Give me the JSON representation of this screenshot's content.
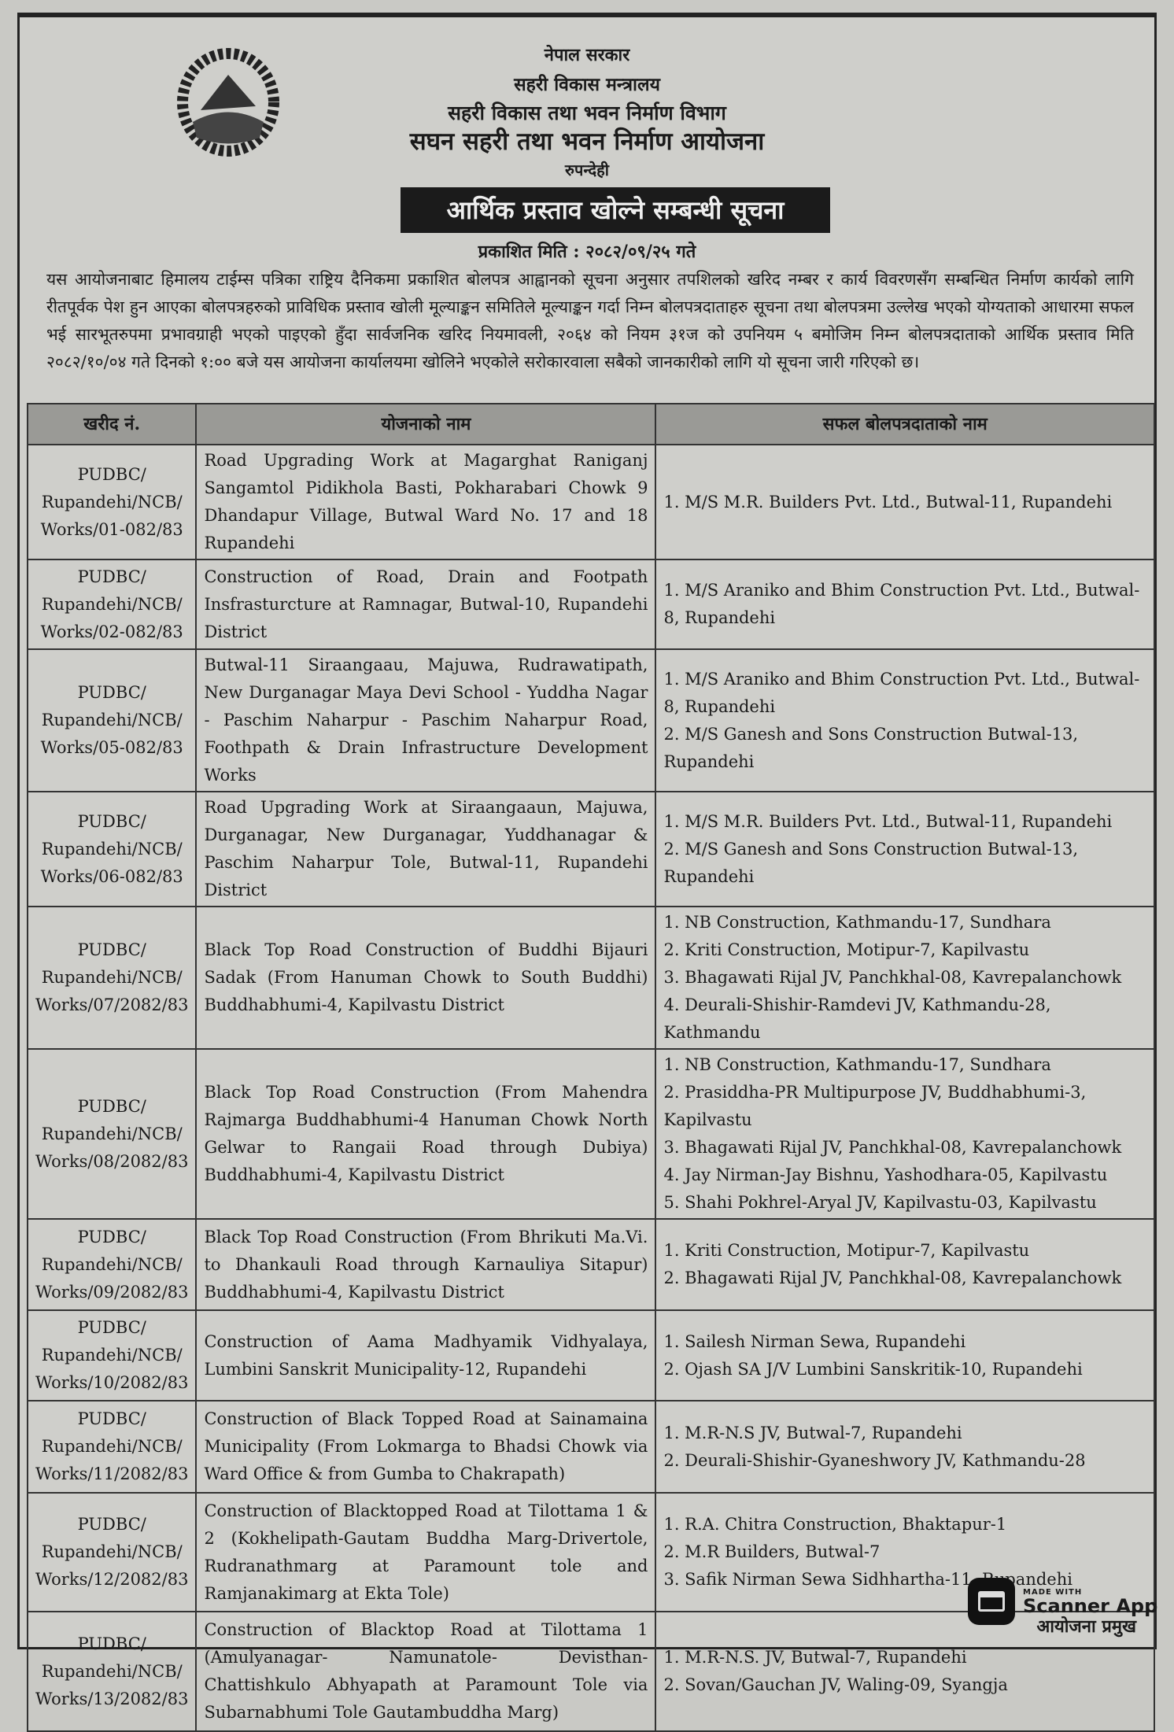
{
  "header": {
    "line1": "नेपाल सरकार",
    "line2": "सहरी विकास मन्त्रालय",
    "line3": "सहरी विकास तथा भवन निर्माण विभाग",
    "line4": "सघन सहरी तथा भवन निर्माण आयोजना",
    "line5": "रुपन्देही",
    "title": "आर्थिक प्रस्ताव खोल्ने सम्बन्धी सूचना",
    "published": "प्रकाशित मिति : २०८२/०९/२५ गते"
  },
  "body_text": "यस आयोजनाबाट हिमालय टाईम्स पत्रिका राष्ट्रिय दैनिकमा प्रकाशित बोलपत्र आह्वानको सूचना अनुसार तपशिलको खरिद नम्बर र कार्य विवरणसँग सम्बन्धित निर्माण कार्यको लागि रीतपूर्वक पेश हुन आएका बोलपत्रहरुको प्राविधिक प्रस्ताव खोली मूल्याङ्कन समितिले मूल्याङ्कन गर्दा निम्न बोलपत्रदाताहरु सूचना तथा बोलपत्रमा उल्लेख भएको योग्यताको आधारमा सफल भई सारभूतरुपमा प्रभावग्राही भएको पाइएको हुँदा सार्वजनिक खरिद नियमावली, २०६४ को नियम ३१ज को उपनियम ५ बमोजिम निम्न बोलपत्रदाताको आर्थिक प्रस्ताव मिति २०८२/१०/०४ गते दिनको १:०० बजे यस आयोजना कार्यालयमा खोलिने भएकोले सरोकारवाला सबैको जानकारीको लागि यो सूचना जारी गरिएको छ।",
  "table": {
    "headers": [
      "खरीद नं.",
      "योजनाको नाम",
      "सफल बोलपत्रदाताको नाम"
    ],
    "rows": [
      {
        "id": "PUDBC/ Rupandehi/NCB/ Works/01-082/83",
        "name": "Road Upgrading Work at Magarghat Raniganj Sangamtol Pidikhola Basti, Pokharabari Chowk 9 Dhandapur Village, Butwal Ward No. 17 and 18 Rupandehi",
        "bidders": [
          "1. M/S M.R. Builders Pvt. Ltd., Butwal-11, Rupandehi"
        ]
      },
      {
        "id": "PUDBC/ Rupandehi/NCB/ Works/02-082/83",
        "name": "Construction of Road, Drain and Footpath Insfrasturcture at Ramnagar, Butwal-10, Rupandehi District",
        "bidders": [
          "1. M/S Araniko and Bhim Construction Pvt. Ltd., Butwal-8, Rupandehi"
        ]
      },
      {
        "id": "PUDBC/ Rupandehi/NCB/ Works/05-082/83",
        "name": "Butwal-11 Siraangaau, Majuwa, Rudrawatipath, New Durganagar Maya Devi School - Yuddha Nagar - Paschim Naharpur - Paschim Naharpur Road, Foothpath & Drain Infrastructure Development Works",
        "bidders": [
          "1. M/S Araniko and Bhim Construction Pvt. Ltd., Butwal-8, Rupandehi",
          "2. M/S Ganesh and Sons Construction Butwal-13, Rupandehi"
        ]
      },
      {
        "id": "PUDBC/ Rupandehi/NCB/ Works/06-082/83",
        "name": "Road Upgrading Work at Siraangaaun, Majuwa, Durganagar, New Durganagar, Yuddhanagar & Paschim Naharpur Tole, Butwal-11, Rupandehi District",
        "bidders": [
          "1. M/S M.R. Builders Pvt. Ltd., Butwal-11, Rupandehi",
          "2. M/S Ganesh and Sons Construction Butwal-13, Rupandehi"
        ]
      },
      {
        "id": "PUDBC/ Rupandehi/NCB/ Works/07/2082/83",
        "name": "Black Top Road Construction of Buddhi Bijauri Sadak (From Hanuman Chowk to South Buddhi) Buddhabhumi-4, Kapilvastu District",
        "bidders": [
          "1. NB Construction, Kathmandu-17, Sundhara",
          "2. Kriti Construction, Motipur-7, Kapilvastu",
          "3. Bhagawati Rijal JV, Panchkhal-08, Kavrepalanchowk",
          "4. Deurali-Shishir-Ramdevi JV, Kathmandu-28, Kathmandu"
        ]
      },
      {
        "id": "PUDBC/ Rupandehi/NCB/ Works/08/2082/83",
        "name": "Black Top Road Construction (From Mahendra Rajmarga Buddhabhumi-4 Hanuman Chowk North Gelwar to Rangaii Road through Dubiya) Buddhabhumi-4, Kapilvastu District",
        "bidders": [
          "1. NB Construction, Kathmandu-17, Sundhara",
          "2. Prasiddha-PR Multipurpose JV, Buddhabhumi-3, Kapilvastu",
          "3. Bhagawati Rijal JV, Panchkhal-08, Kavrepalanchowk",
          "4. Jay Nirman-Jay Bishnu, Yashodhara-05, Kapilvastu",
          "5. Shahi Pokhrel-Aryal JV, Kapilvastu-03, Kapilvastu"
        ]
      },
      {
        "id": "PUDBC/ Rupandehi/NCB/ Works/09/2082/83",
        "name": "Black Top Road Construction (From Bhrikuti Ma.Vi. to Dhankauli Road through Karnauliya Sitapur) Buddhabhumi-4, Kapilvastu District",
        "bidders": [
          "1. Kriti Construction, Motipur-7, Kapilvastu",
          "2. Bhagawati Rijal JV, Panchkhal-08, Kavrepalanchowk"
        ]
      },
      {
        "id": "PUDBC/ Rupandehi/NCB/ Works/10/2082/83",
        "name": "Construction of Aama Madhyamik Vidhyalaya, Lumbini Sanskrit Municipality-12, Rupandehi",
        "bidders": [
          "1. Sailesh Nirman Sewa, Rupandehi",
          "2. Ojash SA J/V Lumbini Sanskritik-10, Rupandehi"
        ]
      },
      {
        "id": "PUDBC/ Rupandehi/NCB/ Works/11/2082/83",
        "name": "Construction of Black Topped Road at Sainamaina Municipality (From Lokmarga to Bhadsi Chowk via Ward Office & from Gumba to Chakrapath)",
        "bidders": [
          "1. M.R-N.S JV, Butwal-7, Rupandehi",
          "2. Deurali-Shishir-Gyaneshwory JV, Kathmandu-28"
        ]
      },
      {
        "id": "PUDBC/ Rupandehi/NCB/ Works/12/2082/83",
        "name": "Construction of Blacktopped Road at Tilottama 1 & 2 (Kokhelipath-Gautam Buddha Marg-Drivertole, Rudranathmarg at Paramount tole and Ramjanakimarg at Ekta Tole)",
        "bidders": [
          "1. R.A. Chitra Construction, Bhaktapur-1",
          "2. M.R Builders, Butwal-7",
          "3. Safik Nirman Sewa Sidhhartha-11, Rupandehi"
        ]
      },
      {
        "id": "PUDBC/ Rupandehi/NCB/ Works/13/2082/83",
        "name": "Construction of Blacktop Road at Tilottama 1 (Amulyanagar- Namunatole- Devisthan- Chattishkulo Abhyapath at Paramount Tole via Subarnabhumi Tole Gautambuddha Marg)",
        "bidders": [
          "1. M.R-N.S. JV, Butwal-7, Rupandehi",
          "2. Sovan/Gauchan JV, Waling-09, Syangja"
        ]
      }
    ]
  },
  "signature": "आयोजना प्रमुख",
  "watermark": {
    "made_with": "MADE WITH",
    "name": "Scanner App"
  }
}
